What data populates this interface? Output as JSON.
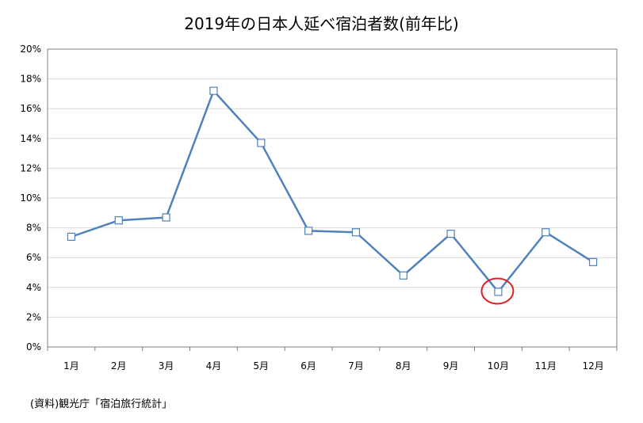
{
  "chart_data": {
    "type": "line",
    "title": "2019年の日本人延べ宿泊者数(前年比)",
    "xlabel": "",
    "ylabel": "",
    "categories": [
      "1月",
      "2月",
      "3月",
      "4月",
      "5月",
      "6月",
      "7月",
      "8月",
      "9月",
      "10月",
      "11月",
      "12月"
    ],
    "y_ticks": [
      "0%",
      "2%",
      "4%",
      "6%",
      "8%",
      "10%",
      "12%",
      "14%",
      "16%",
      "18%",
      "20%"
    ],
    "ylim": [
      0,
      20
    ],
    "grid": true,
    "series": [
      {
        "values": [
          7.4,
          8.5,
          8.7,
          17.2,
          13.7,
          7.8,
          7.7,
          4.8,
          7.6,
          3.7,
          7.7,
          5.7
        ]
      }
    ],
    "highlight_index": 9,
    "colors": {
      "line": "#4f81bd",
      "grid": "#d9d9d9",
      "highlight": "#e02020"
    }
  },
  "source": "(資料)観光庁「宿泊旅行統計」"
}
